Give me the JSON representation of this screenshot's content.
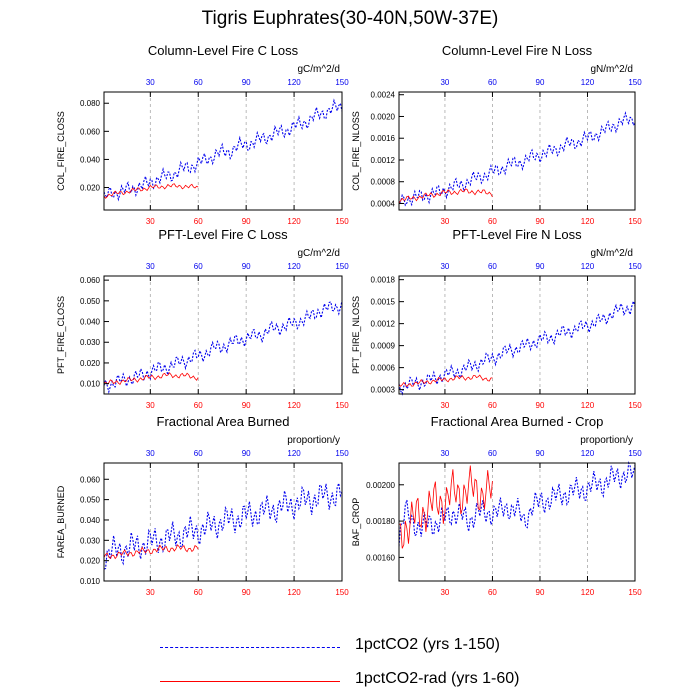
{
  "title": "Tigris Euphrates(30-40N,50W-37E)",
  "colors": {
    "series1": "#0000ee",
    "series2": "#ff0000",
    "axis": "#000000",
    "grid": "#aaaaaa"
  },
  "legend": [
    {
      "label": "1pctCO2 (yrs 1-150)",
      "color": "#0000ee",
      "style": "dashed"
    },
    {
      "label": "1pctCO2-rad (yrs 1-60)",
      "color": "#ff0000",
      "style": "solid"
    }
  ],
  "chart_data": [
    {
      "type": "line",
      "title": "Column-Level Fire C Loss",
      "ylabel": "COL_FIRE_CLOSS",
      "units": "gC/m^2/d",
      "xlim": [
        1,
        150
      ],
      "ylim": [
        0.004,
        0.088
      ],
      "yticks": [
        "0.020",
        "0.040",
        "0.060",
        "0.080"
      ],
      "top_ticks": [
        "30",
        "60",
        "90",
        "120",
        "150"
      ],
      "bottom_ticks": [
        "30",
        "60",
        "90",
        "120",
        "150"
      ],
      "grid_x": [
        30,
        60,
        90,
        120
      ],
      "series": [
        {
          "x": [
            1,
            5,
            10,
            15,
            20,
            25,
            30,
            35,
            40,
            45,
            50,
            55,
            60,
            65,
            70,
            75,
            80,
            85,
            90,
            95,
            100,
            105,
            110,
            115,
            120,
            125,
            130,
            135,
            140,
            145,
            150
          ],
          "y": [
            0.012,
            0.016,
            0.017,
            0.018,
            0.02,
            0.021,
            0.024,
            0.026,
            0.028,
            0.03,
            0.033,
            0.035,
            0.037,
            0.04,
            0.043,
            0.045,
            0.046,
            0.049,
            0.051,
            0.052,
            0.055,
            0.057,
            0.059,
            0.061,
            0.063,
            0.066,
            0.068,
            0.072,
            0.074,
            0.076,
            0.078
          ],
          "amp": 0.006
        },
        {
          "x": [
            1,
            10,
            20,
            30,
            40,
            50,
            60
          ],
          "y": [
            0.014,
            0.016,
            0.018,
            0.02,
            0.021,
            0.021,
            0.02
          ],
          "amp": 0.002
        }
      ]
    },
    {
      "type": "line",
      "title": "Column-Level Fire N Loss",
      "ylabel": "COL_FIRE_NLOSS",
      "units": "gN/m^2/d",
      "xlim": [
        1,
        150
      ],
      "ylim": [
        0.00028,
        0.00245
      ],
      "yticks": [
        "0.0004",
        "0.0008",
        "0.0012",
        "0.0016",
        "0.0020",
        "0.0024"
      ],
      "top_ticks": [
        "30",
        "60",
        "90",
        "120",
        "150"
      ],
      "bottom_ticks": [
        "30",
        "60",
        "90",
        "120",
        "150"
      ],
      "grid_x": [
        30,
        60,
        90,
        120
      ],
      "series": [
        {
          "x": [
            1,
            5,
            10,
            15,
            20,
            25,
            30,
            35,
            40,
            45,
            50,
            55,
            60,
            65,
            70,
            75,
            80,
            85,
            90,
            95,
            100,
            105,
            110,
            115,
            120,
            125,
            130,
            135,
            140,
            145,
            150
          ],
          "y": [
            0.00042,
            0.00048,
            0.0005,
            0.00053,
            0.00056,
            0.0006,
            0.00065,
            0.0007,
            0.00075,
            0.0008,
            0.00087,
            0.00092,
            0.00097,
            0.00104,
            0.0011,
            0.00115,
            0.00118,
            0.00125,
            0.0013,
            0.00133,
            0.0014,
            0.00146,
            0.0015,
            0.00155,
            0.0016,
            0.00167,
            0.00172,
            0.00182,
            0.00188,
            0.00193,
            0.00198
          ],
          "amp": 0.00015
        },
        {
          "x": [
            1,
            10,
            20,
            30,
            40,
            50,
            60
          ],
          "y": [
            0.00046,
            0.0005,
            0.00055,
            0.0006,
            0.00062,
            0.00062,
            0.00058
          ],
          "amp": 6e-05
        }
      ]
    },
    {
      "type": "line",
      "title": "PFT-Level Fire C Loss",
      "ylabel": "PFT_FIRE_CLOSS",
      "units": "gC/m^2/d",
      "xlim": [
        1,
        150
      ],
      "ylim": [
        0.005,
        0.062
      ],
      "yticks": [
        "0.010",
        "0.020",
        "0.030",
        "0.040",
        "0.050",
        "0.060"
      ],
      "top_ticks": [
        "30",
        "60",
        "90",
        "120",
        "150"
      ],
      "bottom_ticks": [
        "30",
        "60",
        "90",
        "120",
        "150"
      ],
      "grid_x": [
        30,
        60,
        90,
        120
      ],
      "series": [
        {
          "x": [
            1,
            5,
            10,
            15,
            20,
            25,
            30,
            35,
            40,
            45,
            50,
            55,
            60,
            65,
            70,
            75,
            80,
            85,
            90,
            95,
            100,
            105,
            110,
            115,
            120,
            125,
            130,
            135,
            140,
            145,
            150
          ],
          "y": [
            0.009,
            0.01,
            0.011,
            0.012,
            0.013,
            0.014,
            0.016,
            0.017,
            0.018,
            0.019,
            0.021,
            0.022,
            0.023,
            0.025,
            0.027,
            0.028,
            0.029,
            0.031,
            0.032,
            0.033,
            0.034,
            0.036,
            0.037,
            0.038,
            0.039,
            0.041,
            0.042,
            0.045,
            0.046,
            0.047,
            0.048
          ],
          "amp": 0.004
        },
        {
          "x": [
            1,
            10,
            20,
            30,
            40,
            50,
            60
          ],
          "y": [
            0.01,
            0.011,
            0.012,
            0.013,
            0.014,
            0.014,
            0.013
          ],
          "amp": 0.0015
        }
      ]
    },
    {
      "type": "line",
      "title": "PFT-Level Fire N Loss",
      "ylabel": "PFT_FIRE_NLOSS",
      "units": "gN/m^2/d",
      "xlim": [
        1,
        150
      ],
      "ylim": [
        0.00024,
        0.00185
      ],
      "yticks": [
        "0.0003",
        "0.0006",
        "0.0009",
        "0.0012",
        "0.0015",
        "0.0018"
      ],
      "top_ticks": [
        "30",
        "60",
        "90",
        "120",
        "150"
      ],
      "bottom_ticks": [
        "30",
        "60",
        "90",
        "120",
        "150"
      ],
      "grid_x": [
        30,
        60,
        90,
        120
      ],
      "series": [
        {
          "x": [
            1,
            5,
            10,
            15,
            20,
            25,
            30,
            35,
            40,
            45,
            50,
            55,
            60,
            65,
            70,
            75,
            80,
            85,
            90,
            95,
            100,
            105,
            110,
            115,
            120,
            125,
            130,
            135,
            140,
            145,
            150
          ],
          "y": [
            0.00033,
            0.00036,
            0.00038,
            0.0004,
            0.00043,
            0.00046,
            0.0005,
            0.00053,
            0.00056,
            0.0006,
            0.00065,
            0.00069,
            0.00073,
            0.00078,
            0.00083,
            0.00086,
            0.00089,
            0.00094,
            0.00098,
            0.001,
            0.00104,
            0.00108,
            0.00111,
            0.00114,
            0.00118,
            0.00122,
            0.00125,
            0.00134,
            0.00138,
            0.00141,
            0.00144
          ],
          "amp": 0.00011
        },
        {
          "x": [
            1,
            10,
            20,
            30,
            40,
            50,
            60
          ],
          "y": [
            0.00035,
            0.00038,
            0.00041,
            0.00044,
            0.00046,
            0.00047,
            0.00044
          ],
          "amp": 4e-05
        }
      ]
    },
    {
      "type": "line",
      "title": "Fractional Area Burned",
      "ylabel": "FAREA_BURNED",
      "units": "proportion/y",
      "xlim": [
        1,
        150
      ],
      "ylim": [
        0.01,
        0.068
      ],
      "yticks": [
        "0.010",
        "0.020",
        "0.030",
        "0.040",
        "0.050",
        "0.060"
      ],
      "top_ticks": [
        "30",
        "60",
        "90",
        "120",
        "150"
      ],
      "bottom_ticks": [
        "30",
        "60",
        "90",
        "120",
        "150"
      ],
      "grid_x": [
        30,
        60,
        90,
        120
      ],
      "series": [
        {
          "x": [
            1,
            5,
            10,
            15,
            20,
            25,
            30,
            35,
            40,
            45,
            50,
            55,
            60,
            65,
            70,
            75,
            80,
            85,
            90,
            95,
            100,
            105,
            110,
            115,
            120,
            125,
            130,
            135,
            140,
            145,
            150
          ],
          "y": [
            0.022,
            0.024,
            0.025,
            0.026,
            0.027,
            0.028,
            0.029,
            0.03,
            0.031,
            0.032,
            0.033,
            0.034,
            0.035,
            0.036,
            0.038,
            0.039,
            0.04,
            0.041,
            0.042,
            0.043,
            0.044,
            0.045,
            0.046,
            0.047,
            0.048,
            0.049,
            0.05,
            0.051,
            0.052,
            0.052,
            0.053
          ],
          "amp": 0.008
        },
        {
          "x": [
            1,
            10,
            20,
            30,
            40,
            50,
            60
          ],
          "y": [
            0.022,
            0.023,
            0.024,
            0.025,
            0.026,
            0.026,
            0.026
          ],
          "amp": 0.002
        }
      ]
    },
    {
      "type": "line",
      "title": "Fractional Area Burned - Crop",
      "ylabel": "BAF_CROP",
      "units": "proportion/y",
      "xlim": [
        1,
        150
      ],
      "ylim": [
        0.00147,
        0.00212
      ],
      "yticks": [
        "0.00160",
        "0.00180",
        "0.00200"
      ],
      "top_ticks": [
        "30",
        "60",
        "90",
        "120",
        "150"
      ],
      "bottom_ticks": [
        "30",
        "60",
        "90",
        "120",
        "150"
      ],
      "grid_x": [
        30,
        60,
        90,
        120
      ],
      "series": [
        {
          "x": [
            1,
            5,
            10,
            15,
            20,
            25,
            30,
            35,
            40,
            45,
            50,
            55,
            60,
            65,
            70,
            75,
            80,
            85,
            90,
            95,
            100,
            105,
            110,
            115,
            120,
            125,
            130,
            135,
            140,
            145,
            150
          ],
          "y": [
            0.0017,
            0.00185,
            0.0018,
            0.00175,
            0.0018,
            0.00178,
            0.00182,
            0.00185,
            0.00183,
            0.0018,
            0.00185,
            0.00184,
            0.00185,
            0.00185,
            0.00188,
            0.00186,
            0.0018,
            0.00188,
            0.0019,
            0.00192,
            0.00193,
            0.00195,
            0.00196,
            0.00197,
            0.00198,
            0.002,
            0.00201,
            0.00203,
            0.00205,
            0.00206,
            0.00205
          ],
          "amp": 8e-05
        },
        {
          "x": [
            1,
            5,
            10,
            15,
            20,
            25,
            30,
            35,
            40,
            45,
            50,
            55,
            60
          ],
          "y": [
            0.0017,
            0.00178,
            0.0018,
            0.00185,
            0.00188,
            0.0019,
            0.00192,
            0.00195,
            0.00196,
            0.00197,
            0.00197,
            0.00196,
            0.00195
          ],
          "amp": 0.00014
        }
      ]
    }
  ]
}
